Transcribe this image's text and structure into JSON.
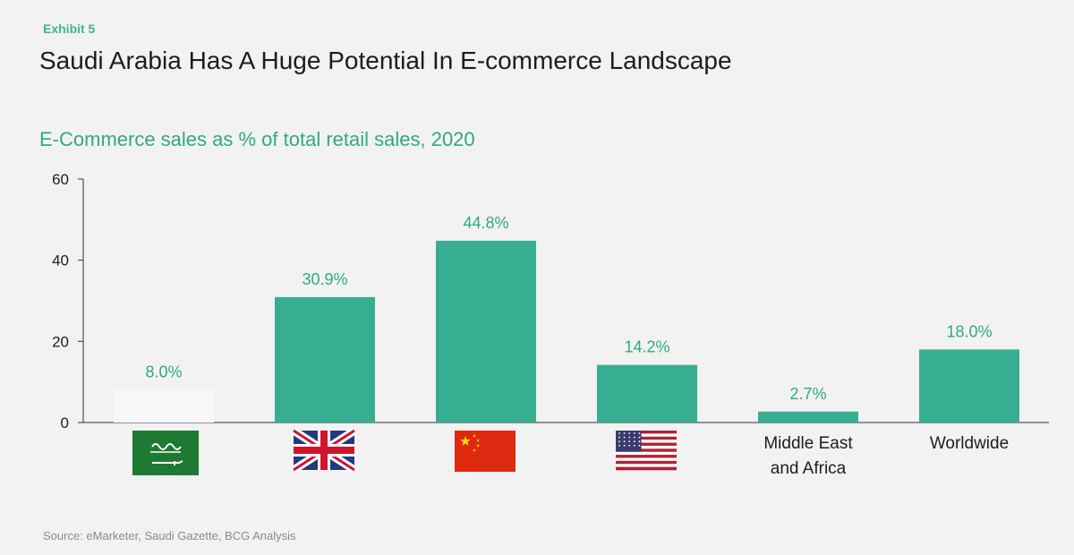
{
  "exhibit_label": "Exhibit 5",
  "title": "Saudi Arabia Has A Huge Potential In E-commerce Landscape",
  "source": "Source: eMarketer, Saudi Gazette, BCG Analysis",
  "colors": {
    "bar": "#37ae92",
    "highlight_bar": "#f7f7f7",
    "accent_text": "#2faa80",
    "axis": "#333333"
  },
  "chart_data": {
    "type": "bar",
    "title": "E-Commerce sales as % of total retail sales, 2020",
    "xlabel": "",
    "ylabel": "",
    "ylim": [
      0,
      60
    ],
    "yticks": [
      0,
      20,
      40,
      60
    ],
    "categories": [
      {
        "name": "Saudi Arabia",
        "flag": "saudi-arabia-flag-icon",
        "label_lines": []
      },
      {
        "name": "United Kingdom",
        "flag": "uk-flag-icon",
        "label_lines": []
      },
      {
        "name": "China",
        "flag": "china-flag-icon",
        "label_lines": []
      },
      {
        "name": "United States",
        "flag": "us-flag-icon",
        "label_lines": []
      },
      {
        "name": "Middle East and Africa",
        "flag": null,
        "label_lines": [
          "Middle East",
          "and Africa"
        ]
      },
      {
        "name": "Worldwide",
        "flag": null,
        "label_lines": [
          "Worldwide"
        ]
      }
    ],
    "values": [
      8.0,
      30.9,
      44.8,
      14.2,
      2.7,
      18.0
    ],
    "data_labels": [
      "8.0%",
      "30.9%",
      "44.8%",
      "14.2%",
      "2.7%",
      "18.0%"
    ],
    "highlight_index": 0
  }
}
